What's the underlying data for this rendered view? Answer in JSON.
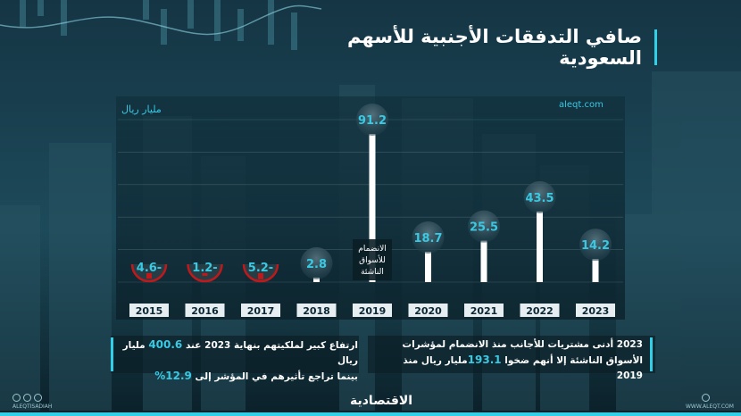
{
  "title": "صافي التدفقات الأجنبية للأسهم السعودية",
  "unit": "مليار ريال",
  "site_top": "aleqt.com",
  "brand": "الاقتصادية",
  "handle_left": "ALEQTISADIAH",
  "handle_right": "WWW.ALEQT.COM",
  "social_icons": [
    "instagram-icon",
    "facebook-icon",
    "x-icon"
  ],
  "colors": {
    "accent": "#2fd0e8",
    "value_text": "#39c9e3",
    "positive_bar": "#ffffff",
    "negative_marker": "#c0191b",
    "year_label_bg": "#e6eef2"
  },
  "chart_data": {
    "type": "bar",
    "title": "صافي التدفقات الأجنبية للأسهم السعودية",
    "ylabel": "مليار ريال",
    "categories": [
      "2015",
      "2016",
      "2017",
      "2018",
      "2019",
      "2020",
      "2021",
      "2022",
      "2023"
    ],
    "values": [
      -4.6,
      -1.2,
      -5.2,
      2.8,
      91.2,
      18.7,
      25.5,
      43.5,
      14.2
    ],
    "value_labels": [
      "4.6-",
      "1.2-",
      "5.2-",
      "2.8",
      "91.2",
      "18.7",
      "25.5",
      "43.5",
      "14.2"
    ],
    "annotations": [
      {
        "category": "2019",
        "text": [
          "الانضمام",
          "للأسواق",
          "الناشئة"
        ]
      }
    ]
  },
  "notes": {
    "left": {
      "line1_a": "ارتفاع كبير لملكيتهم بنهاية 2023 عند ",
      "line1_hl": "400.6",
      "line1_b": " مليار ريال",
      "line2_a": "بينما تراجع تأثيرهم في المؤشر إلى ",
      "line2_hl": "12.9%"
    },
    "right": {
      "line1": "2023 أدنى مشتريات للأجانب منذ الانضمام لمؤشرات",
      "line2_a": "الأسواق الناشئة إلا أنهم ضخوا ",
      "line2_hl": "193.1",
      "line2_b": "مليار ريال منذ 2019"
    }
  }
}
